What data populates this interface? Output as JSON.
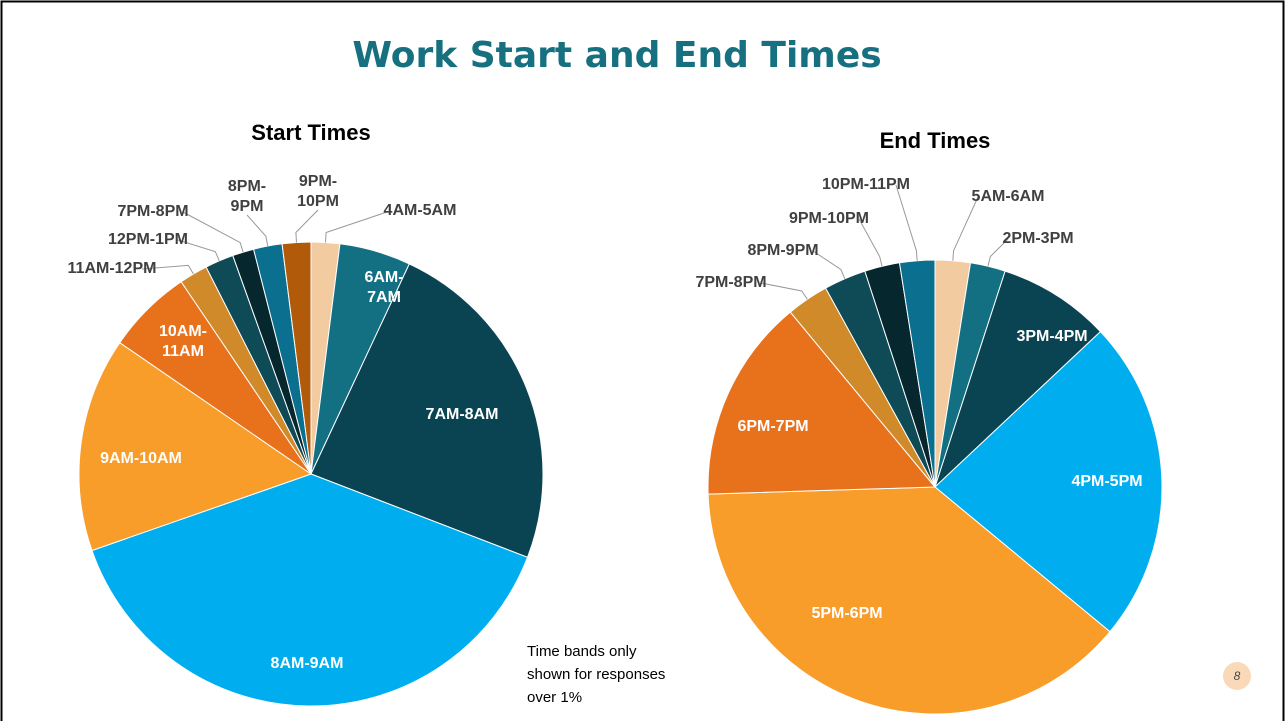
{
  "title": "Work Start and End Times",
  "chart_data": [
    {
      "type": "pie",
      "title": "Start Times",
      "categories": [
        "4AM-5AM",
        "6AM-7AM",
        "7AM-8AM",
        "8AM-9AM",
        "9AM-10AM",
        "10AM-11AM",
        "11AM-12PM",
        "12PM-1PM",
        "7PM-8PM",
        "8PM-9PM",
        "9PM-10PM"
      ],
      "values": [
        2,
        5,
        24,
        39,
        15,
        6,
        2,
        2,
        1.5,
        2,
        2
      ],
      "colors": [
        "#f2cba0",
        "#127082",
        "#0a4452",
        "#00aeef",
        "#f89c2a",
        "#e8711c",
        "#d18a2a",
        "#0f4a57",
        "#06272e",
        "#0b6f8f",
        "#b05a0a"
      ]
    },
    {
      "type": "pie",
      "title": "End Times",
      "categories": [
        "5AM-6AM",
        "2PM-3PM",
        "3PM-4PM",
        "4PM-5PM",
        "5PM-6PM",
        "6PM-7PM",
        "7PM-8PM",
        "8PM-9PM",
        "9PM-10PM",
        "10PM-11PM"
      ],
      "values": [
        2.5,
        2.5,
        8,
        23,
        38.5,
        14.5,
        3,
        3,
        2.5,
        2.5
      ],
      "colors": [
        "#f2cba0",
        "#127082",
        "#0a4452",
        "#00aeef",
        "#f89c2a",
        "#e8711c",
        "#d18a2a",
        "#0f4a57",
        "#06272e",
        "#0b6f8f"
      ]
    }
  ],
  "note": [
    "Time bands only",
    "shown for responses",
    "over 1%"
  ],
  "page_number": 8
}
